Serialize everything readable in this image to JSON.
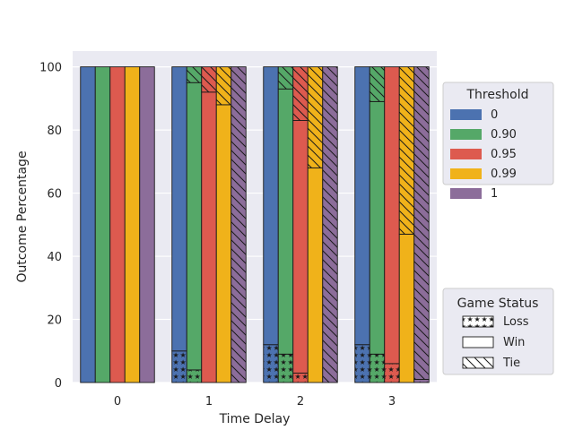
{
  "chart_data": {
    "type": "bar",
    "xlabel": "Time Delay",
    "ylabel": "Outcome Percentage",
    "categories": [
      "0",
      "1",
      "2",
      "3"
    ],
    "yticks": [
      0,
      20,
      40,
      60,
      80,
      100
    ],
    "ylim": [
      0,
      105
    ],
    "grid": true,
    "threshold_legend": {
      "title": "Threshold",
      "placement": "top-right outside",
      "entries": [
        "0",
        "0.90",
        "0.95",
        "0.99",
        "1"
      ]
    },
    "status_legend": {
      "title": "Game Status",
      "placement": "bottom-right outside",
      "entries": [
        "Loss",
        "Win",
        "Tie"
      ]
    },
    "series": [
      {
        "threshold": "0",
        "color": "#4c72b0",
        "loss": [
          0,
          10,
          12,
          12
        ],
        "win": [
          100,
          90,
          88,
          88
        ],
        "tie": [
          0,
          0,
          0,
          0
        ]
      },
      {
        "threshold": "0.90",
        "color": "#55a868",
        "loss": [
          0,
          4,
          9,
          9
        ],
        "win": [
          100,
          91,
          84,
          80
        ],
        "tie": [
          0,
          5,
          7,
          11
        ]
      },
      {
        "threshold": "0.95",
        "color": "#dd5a4f",
        "loss": [
          0,
          0,
          3,
          6
        ],
        "win": [
          100,
          92,
          80,
          94
        ],
        "tie": [
          0,
          8,
          17,
          0
        ]
      },
      {
        "threshold": "0.99",
        "color": "#f0b21a",
        "loss": [
          0,
          0,
          0,
          0
        ],
        "win": [
          100,
          88,
          68,
          47
        ],
        "tie": [
          0,
          12,
          32,
          53
        ]
      },
      {
        "threshold": "1",
        "color": "#8c6d9a",
        "loss": [
          0,
          0,
          0,
          1
        ],
        "win": [
          100,
          0,
          0,
          0
        ],
        "tie": [
          0,
          100,
          100,
          99
        ]
      }
    ]
  }
}
